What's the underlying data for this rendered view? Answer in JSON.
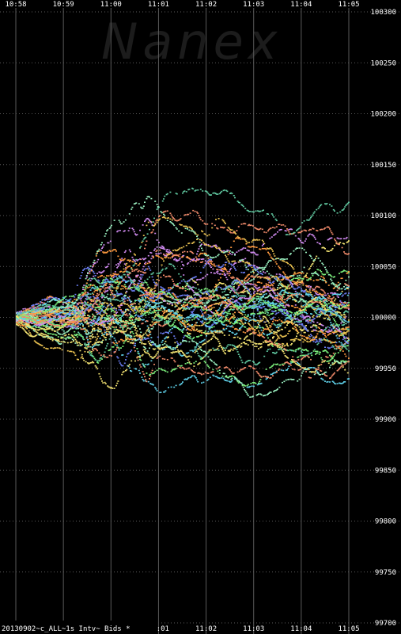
{
  "chart_data": {
    "type": "scatter",
    "watermark": "Nanex",
    "footer_label": "20130902~c_ALL~1s Intv~ Bids *",
    "x_ticks": [
      "10:58",
      "10:59",
      "11:00",
      "11:01",
      "11:02",
      "11:03",
      "11:04",
      "11:05"
    ],
    "x_range_minutes": [
      0,
      7
    ],
    "y_ticks": [
      100300,
      100250,
      100200,
      100150,
      100100,
      100050,
      100000,
      99950,
      99900,
      99850,
      99800,
      99750,
      99700
    ],
    "y_range": [
      99700,
      100300
    ],
    "grid": true,
    "colors": {
      "background": "#000000",
      "grid": "#5a5a5a",
      "series_palette": [
        "#5fd0e8",
        "#7cf07c",
        "#f0e070",
        "#f08a6a",
        "#6a7cf0",
        "#d08af0",
        "#9af0c0",
        "#e8c050",
        "#60c8a0",
        "#ff9a40"
      ]
    }
  }
}
